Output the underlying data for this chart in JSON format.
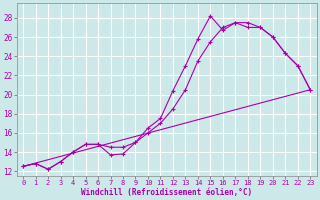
{
  "xlabel": "Windchill (Refroidissement éolien,°C)",
  "bg_color": "#cce8e8",
  "grid_color": "#ffffff",
  "line_color": "#aa00aa",
  "xlim_min": -0.5,
  "xlim_max": 23.5,
  "ylim_min": 11.5,
  "ylim_max": 29.5,
  "yticks": [
    12,
    14,
    16,
    18,
    20,
    22,
    24,
    26,
    28
  ],
  "xticks": [
    0,
    1,
    2,
    3,
    4,
    5,
    6,
    7,
    8,
    9,
    10,
    11,
    12,
    13,
    14,
    15,
    16,
    17,
    18,
    19,
    20,
    21,
    22,
    23
  ],
  "line1_x": [
    0,
    1,
    2,
    3,
    4,
    5,
    6,
    7,
    8,
    9,
    10,
    11,
    12,
    13,
    14,
    15,
    16,
    17,
    18,
    19,
    20,
    21,
    22,
    23
  ],
  "line1_y": [
    12.5,
    12.8,
    12.2,
    13.0,
    14.0,
    14.8,
    14.8,
    13.7,
    13.8,
    15.0,
    16.5,
    17.5,
    20.4,
    23.0,
    25.8,
    28.2,
    26.7,
    27.5,
    27.0,
    27.0,
    26.0,
    24.3,
    23.0,
    20.5
  ],
  "line2_x": [
    0,
    1,
    2,
    3,
    4,
    5,
    6,
    7,
    8,
    9,
    10,
    11,
    12,
    13,
    14,
    15,
    16,
    17,
    18,
    19,
    20,
    21,
    22,
    23
  ],
  "line2_y": [
    12.5,
    12.8,
    12.2,
    13.0,
    14.0,
    14.8,
    14.8,
    14.5,
    14.5,
    15.0,
    16.0,
    17.0,
    18.5,
    20.5,
    23.5,
    25.5,
    27.0,
    27.5,
    27.5,
    27.0,
    26.0,
    24.3,
    23.0,
    20.5
  ],
  "line3_x": [
    0,
    23
  ],
  "line3_y": [
    12.5,
    20.5
  ]
}
